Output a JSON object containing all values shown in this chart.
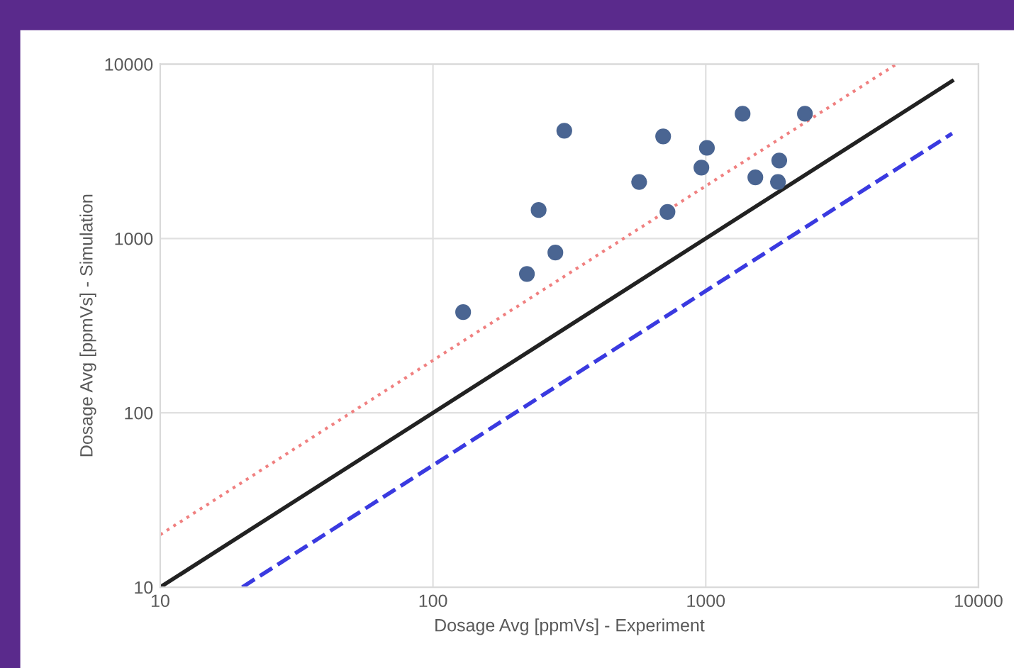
{
  "chart_data": {
    "type": "scatter",
    "xlabel": "Dosage Avg [ppmVs] - Experiment",
    "ylabel": "Dosage Avg [ppmVs] - Simulation",
    "log": "xy",
    "grid": true,
    "legend": false,
    "marker": "circle",
    "xlim": [
      10,
      10000
    ],
    "ylim": [
      10,
      10000
    ],
    "xticks": [
      10,
      100,
      1000,
      10000
    ],
    "yticks": [
      10,
      100,
      1000,
      10000
    ],
    "series": [
      {
        "color": "#4a6592",
        "x": [
          129,
          221,
          244,
          281,
          303,
          570,
          724,
          698,
          964,
          1010,
          1365,
          1520,
          1860,
          1840,
          2310
        ],
        "values": [
          378,
          626,
          1456,
          830,
          4150,
          2110,
          1420,
          3850,
          2550,
          3310,
          5190,
          2240,
          2800,
          2110,
          5190
        ]
      },
      {
        "type": "line",
        "color": "#222222",
        "line_style": "solid",
        "marker": "none",
        "x": [
          10,
          8000
        ],
        "values": [
          10,
          8000
        ]
      },
      {
        "type": "line",
        "color": "#f08080",
        "line_style": "dotted",
        "marker": "none",
        "x": [
          10,
          5000
        ],
        "values": [
          20,
          10000
        ]
      },
      {
        "type": "line",
        "color": "#3a3ae0",
        "line_style": "dashed",
        "marker": "none",
        "x": [
          20,
          8000
        ],
        "values": [
          10,
          4000
        ]
      }
    ]
  }
}
